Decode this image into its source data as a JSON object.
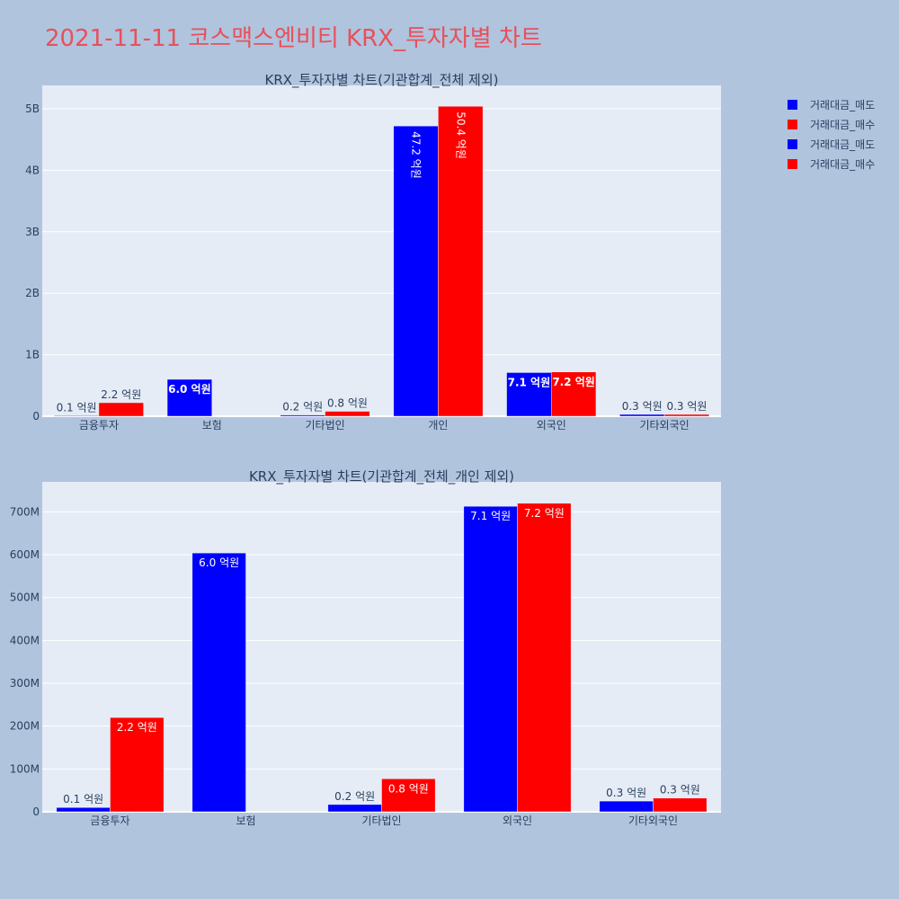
{
  "page_title": "2021-11-11 코스맥스엔비티 KRX_투자자별 차트",
  "colors": {
    "sell": "#0000ff",
    "buy": "#ff0000",
    "plot_bg": "#e5ecf6",
    "page_bg": "#b0c4de",
    "title": "#e8505b"
  },
  "legend": [
    {
      "label": "거래대금_매도",
      "color": "#0000ff"
    },
    {
      "label": "거래대금_매수",
      "color": "#ff0000"
    },
    {
      "label": "거래대금_매도",
      "color": "#0000ff"
    },
    {
      "label": "거래대금_매수",
      "color": "#ff0000"
    }
  ],
  "chart_data": [
    {
      "type": "bar",
      "title": "KRX_투자자별 차트(기관합계_전체 제외)",
      "categories": [
        "금융투자",
        "보험",
        "기타법인",
        "개인",
        "외국인",
        "기타외국인"
      ],
      "series": [
        {
          "name": "거래대금_매도",
          "values": [
            10000000,
            600000000,
            20000000,
            4720000000,
            710000000,
            30000000
          ],
          "labels": [
            "0.1 억원",
            "6.0 억원",
            "0.2 억원",
            "47.2 억원",
            "7.1 억원",
            "0.3 억원"
          ]
        },
        {
          "name": "거래대금_매수",
          "values": [
            220000000,
            0,
            80000000,
            5040000000,
            720000000,
            30000000
          ],
          "labels": [
            "2.2 억원",
            "",
            "0.8 억원",
            "50.4 억원",
            "7.2 억원",
            "0.3 억원"
          ]
        }
      ],
      "ylim": [
        0,
        5380000000
      ],
      "yticks": [
        0,
        1000000000,
        2000000000,
        3000000000,
        4000000000,
        5000000000
      ],
      "ytick_labels": [
        "0",
        "1B",
        "2B",
        "3B",
        "4B",
        "5B"
      ],
      "grid": true
    },
    {
      "type": "bar",
      "title": "KRX_투자자별 차트(기관합계_전체_개인 제외)",
      "categories": [
        "금융투자",
        "보험",
        "기타법인",
        "외국인",
        "기타외국인"
      ],
      "series": [
        {
          "name": "거래대금_매도",
          "values": [
            10000000,
            604000000,
            17000000,
            713000000,
            25000000
          ],
          "labels": [
            "0.1 억원",
            "6.0 억원",
            "0.2 억원",
            "7.1 억원",
            "0.3 억원"
          ]
        },
        {
          "name": "거래대금_매수",
          "values": [
            220000000,
            0,
            77000000,
            720000000,
            32000000
          ],
          "labels": [
            "2.2 억원",
            "",
            "0.8 억원",
            "7.2 억원",
            "0.3 억원"
          ]
        }
      ],
      "ylim": [
        0,
        770000000
      ],
      "yticks": [
        0,
        100000000,
        200000000,
        300000000,
        400000000,
        500000000,
        600000000,
        700000000
      ],
      "ytick_labels": [
        "0",
        "100M",
        "200M",
        "300M",
        "400M",
        "500M",
        "600M",
        "700M"
      ],
      "grid": true
    }
  ]
}
